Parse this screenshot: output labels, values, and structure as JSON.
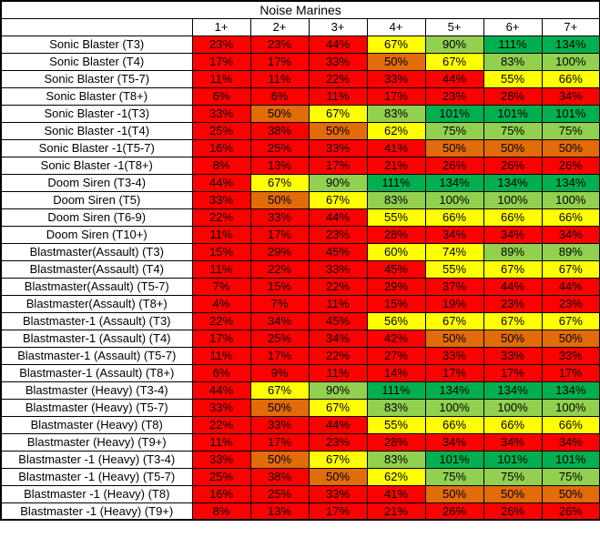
{
  "chart_data": {
    "type": "heatmap",
    "title": "Noise Marines",
    "columns": [
      "1+",
      "2+",
      "3+",
      "4+",
      "5+",
      "6+",
      "7+"
    ],
    "value_suffix": "%",
    "color_palette": {
      "r": "#FF0000",
      "o": "#E26B0A",
      "y": "#FFFF00",
      "g": "#92D050",
      "G": "#00B050"
    },
    "color_legend": {
      "r": "red",
      "o": "orange",
      "y": "yellow",
      "g": "light-green",
      "G": "green"
    },
    "rows": [
      {
        "label": "Sonic Blaster (T3)",
        "values": [
          23,
          23,
          44,
          67,
          90,
          111,
          134
        ],
        "colors": [
          "r",
          "r",
          "r",
          "y",
          "g",
          "G",
          "G"
        ]
      },
      {
        "label": "Sonic Blaster (T4)",
        "values": [
          17,
          17,
          33,
          50,
          67,
          83,
          100
        ],
        "colors": [
          "r",
          "r",
          "r",
          "o",
          "y",
          "g",
          "g"
        ]
      },
      {
        "label": "Sonic Blaster (T5-7)",
        "values": [
          11,
          11,
          22,
          33,
          44,
          55,
          66
        ],
        "colors": [
          "r",
          "r",
          "r",
          "r",
          "r",
          "y",
          "y"
        ]
      },
      {
        "label": "Sonic Blaster (T8+)",
        "values": [
          6,
          6,
          11,
          17,
          23,
          28,
          34
        ],
        "colors": [
          "r",
          "r",
          "r",
          "r",
          "r",
          "r",
          "r"
        ]
      },
      {
        "label": "Sonic Blaster -1(T3)",
        "values": [
          33,
          50,
          67,
          83,
          101,
          101,
          101
        ],
        "colors": [
          "r",
          "o",
          "y",
          "g",
          "G",
          "G",
          "G"
        ]
      },
      {
        "label": "Sonic Blaster -1(T4)",
        "values": [
          25,
          38,
          50,
          62,
          75,
          75,
          75
        ],
        "colors": [
          "r",
          "r",
          "o",
          "y",
          "g",
          "g",
          "g"
        ]
      },
      {
        "label": "Sonic Blaster -1(T5-7)",
        "values": [
          16,
          25,
          33,
          41,
          50,
          50,
          50
        ],
        "colors": [
          "r",
          "r",
          "r",
          "r",
          "o",
          "o",
          "o"
        ]
      },
      {
        "label": "Sonic Blaster -1(T8+)",
        "values": [
          8,
          13,
          17,
          21,
          26,
          26,
          26
        ],
        "colors": [
          "r",
          "r",
          "r",
          "r",
          "r",
          "r",
          "r"
        ]
      },
      {
        "label": "Doom Siren (T3-4)",
        "values": [
          44,
          67,
          90,
          111,
          134,
          134,
          134
        ],
        "colors": [
          "r",
          "y",
          "g",
          "G",
          "G",
          "G",
          "G"
        ]
      },
      {
        "label": "Doom Siren (T5)",
        "values": [
          33,
          50,
          67,
          83,
          100,
          100,
          100
        ],
        "colors": [
          "r",
          "o",
          "y",
          "g",
          "g",
          "g",
          "g"
        ]
      },
      {
        "label": "Doom Siren (T6-9)",
        "values": [
          22,
          33,
          44,
          55,
          66,
          66,
          66
        ],
        "colors": [
          "r",
          "r",
          "r",
          "y",
          "y",
          "y",
          "y"
        ]
      },
      {
        "label": "Doom Siren (T10+)",
        "values": [
          11,
          17,
          23,
          28,
          34,
          34,
          34
        ],
        "colors": [
          "r",
          "r",
          "r",
          "r",
          "r",
          "r",
          "r"
        ]
      },
      {
        "label": "Blastmaster(Assault) (T3)",
        "values": [
          15,
          29,
          45,
          60,
          74,
          89,
          89
        ],
        "colors": [
          "r",
          "r",
          "r",
          "y",
          "y",
          "g",
          "g"
        ]
      },
      {
        "label": "Blastmaster(Assault) (T4)",
        "values": [
          11,
          22,
          33,
          45,
          55,
          67,
          67
        ],
        "colors": [
          "r",
          "r",
          "r",
          "r",
          "y",
          "y",
          "y"
        ]
      },
      {
        "label": "Blastmaster(Assault) (T5-7)",
        "values": [
          7,
          15,
          22,
          29,
          37,
          44,
          44
        ],
        "colors": [
          "r",
          "r",
          "r",
          "r",
          "r",
          "r",
          "r"
        ]
      },
      {
        "label": "Blastmaster(Assault) (T8+)",
        "values": [
          4,
          7,
          11,
          15,
          19,
          23,
          23
        ],
        "colors": [
          "r",
          "r",
          "r",
          "r",
          "r",
          "r",
          "r"
        ]
      },
      {
        "label": "Blastmaster-1 (Assault) (T3)",
        "values": [
          22,
          34,
          45,
          56,
          67,
          67,
          67
        ],
        "colors": [
          "r",
          "r",
          "r",
          "y",
          "y",
          "y",
          "y"
        ]
      },
      {
        "label": "Blastmaster-1 (Assault) (T4)",
        "values": [
          17,
          25,
          34,
          42,
          50,
          50,
          50
        ],
        "colors": [
          "r",
          "r",
          "r",
          "r",
          "o",
          "o",
          "o"
        ]
      },
      {
        "label": "Blastmaster-1 (Assault) (T5-7)",
        "values": [
          11,
          17,
          22,
          27,
          33,
          33,
          33
        ],
        "colors": [
          "r",
          "r",
          "r",
          "r",
          "r",
          "r",
          "r"
        ]
      },
      {
        "label": "Blastmaster-1 (Assault) (T8+)",
        "values": [
          6,
          9,
          11,
          14,
          17,
          17,
          17
        ],
        "colors": [
          "r",
          "r",
          "r",
          "r",
          "r",
          "r",
          "r"
        ]
      },
      {
        "label": "Blastmaster (Heavy) (T3-4)",
        "values": [
          44,
          67,
          90,
          111,
          134,
          134,
          134
        ],
        "colors": [
          "r",
          "y",
          "g",
          "G",
          "G",
          "G",
          "G"
        ]
      },
      {
        "label": "Blastmaster (Heavy) (T5-7)",
        "values": [
          33,
          50,
          67,
          83,
          100,
          100,
          100
        ],
        "colors": [
          "r",
          "o",
          "y",
          "g",
          "g",
          "g",
          "g"
        ]
      },
      {
        "label": "Blastmaster (Heavy) (T8)",
        "values": [
          22,
          33,
          44,
          55,
          66,
          66,
          66
        ],
        "colors": [
          "r",
          "r",
          "r",
          "y",
          "y",
          "y",
          "y"
        ]
      },
      {
        "label": "Blastmaster (Heavy) (T9+)",
        "values": [
          11,
          17,
          23,
          28,
          34,
          34,
          34
        ],
        "colors": [
          "r",
          "r",
          "r",
          "r",
          "r",
          "r",
          "r"
        ]
      },
      {
        "label": "Blastmaster -1 (Heavy) (T3-4)",
        "values": [
          33,
          50,
          67,
          83,
          101,
          101,
          101
        ],
        "colors": [
          "r",
          "o",
          "y",
          "g",
          "G",
          "G",
          "G"
        ]
      },
      {
        "label": "Blastmaster -1 (Heavy) (T5-7)",
        "values": [
          25,
          38,
          50,
          62,
          75,
          75,
          75
        ],
        "colors": [
          "r",
          "r",
          "o",
          "y",
          "g",
          "g",
          "g"
        ]
      },
      {
        "label": "Blastmaster -1 (Heavy) (T8)",
        "values": [
          16,
          25,
          33,
          41,
          50,
          50,
          50
        ],
        "colors": [
          "r",
          "r",
          "r",
          "r",
          "o",
          "o",
          "o"
        ]
      },
      {
        "label": "Blastmaster -1 (Heavy) (T9+)",
        "values": [
          8,
          13,
          17,
          21,
          26,
          26,
          26
        ],
        "colors": [
          "r",
          "r",
          "r",
          "r",
          "r",
          "r",
          "r"
        ]
      }
    ]
  }
}
